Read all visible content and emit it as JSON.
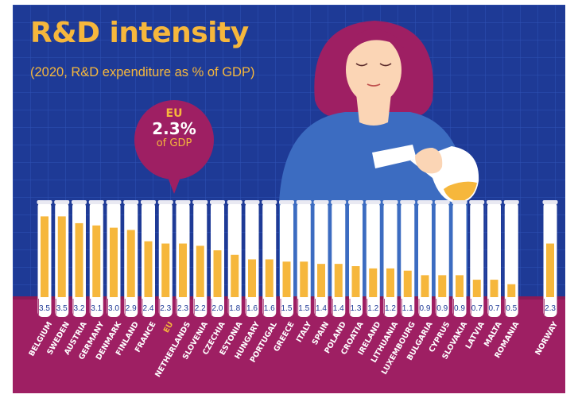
{
  "header": {
    "title": "R&D intensity",
    "subtitle": "(2020, R&D expenditure as % of GDP)"
  },
  "callout": {
    "region": "EU",
    "value": "2.3%",
    "unit": "of GDP"
  },
  "colors": {
    "background": "#1e3a96",
    "band": "#9e1f63",
    "liquid": "#f6b73c",
    "tube": "#ffffff",
    "label": "#ffffff",
    "highlight": "#f6b73c"
  },
  "chart_data": {
    "type": "bar",
    "title": "R&D intensity",
    "subtitle": "(2020, R&D expenditure as % of GDP)",
    "categories": [
      "BELGIUM",
      "SWEDEN",
      "AUSTRIA",
      "GERMANY",
      "DENMARK",
      "FINLAND",
      "FRANCE",
      "EU",
      "NETHERLANDS",
      "SLOVENIA",
      "CZECHIA",
      "ESTONIA",
      "HUNGARY",
      "PORTUGAL",
      "GREECE",
      "ITALY",
      "SPAIN",
      "POLAND",
      "CROATIA",
      "IRELAND",
      "LITHUANIA",
      "LUXEMBOURG",
      "BULGARIA",
      "CYPRUS",
      "SLOVAKIA",
      "LATVIA",
      "MALTA",
      "ROMANIA",
      "NORWAY"
    ],
    "values": [
      3.5,
      3.5,
      3.2,
      3.1,
      3.0,
      2.9,
      2.4,
      2.3,
      2.3,
      2.2,
      2.0,
      1.8,
      1.6,
      1.6,
      1.5,
      1.5,
      1.4,
      1.4,
      1.3,
      1.2,
      1.2,
      1.1,
      0.9,
      0.9,
      0.9,
      0.7,
      0.7,
      0.5,
      2.3
    ],
    "value_labels": [
      "3.5",
      "3.5",
      "3.2",
      "3.1",
      "3.0",
      "2.9",
      "2.4",
      "2.3",
      "2.3",
      "2.2",
      "2.0",
      "1.8",
      "1.6",
      "1.6",
      "1.5",
      "1.5",
      "1.4",
      "1.4",
      "1.3",
      "1.2",
      "1.2",
      "1.1",
      "0.9",
      "0.9",
      "0.9",
      "0.7",
      "0.7",
      "0.5",
      "2.3"
    ],
    "highlight": "EU",
    "ylim": [
      0,
      3.9
    ],
    "unit": "% of GDP",
    "grid": false,
    "legend": "none"
  }
}
